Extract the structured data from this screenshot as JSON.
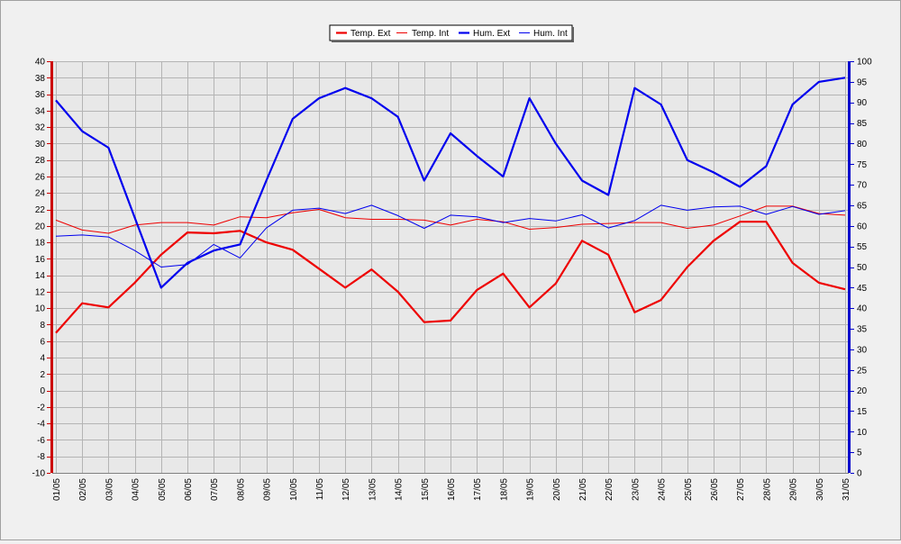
{
  "chart_data": {
    "type": "line",
    "title": "",
    "xlabel": "",
    "ylabel": "",
    "y2label": "",
    "categories": [
      "01/05",
      "02/05",
      "03/05",
      "04/05",
      "05/05",
      "06/05",
      "07/05",
      "08/05",
      "09/05",
      "10/05",
      "11/05",
      "12/05",
      "13/05",
      "14/05",
      "15/05",
      "16/05",
      "17/05",
      "18/05",
      "19/05",
      "20/05",
      "21/05",
      "22/05",
      "23/05",
      "24/05",
      "25/05",
      "26/05",
      "27/05",
      "28/05",
      "29/05",
      "30/05",
      "31/05"
    ],
    "ylim": [
      -10,
      40
    ],
    "y_ticks": [
      -10,
      -8,
      -6,
      -4,
      -2,
      0,
      2,
      4,
      6,
      8,
      10,
      12,
      14,
      16,
      18,
      20,
      22,
      24,
      26,
      28,
      30,
      32,
      34,
      36,
      38,
      40
    ],
    "y2lim": [
      0,
      100
    ],
    "y2_ticks": [
      0,
      5,
      10,
      15,
      20,
      25,
      30,
      35,
      40,
      45,
      50,
      55,
      60,
      65,
      70,
      75,
      80,
      85,
      90,
      95,
      100
    ],
    "grid": true,
    "legend_position": "top-center",
    "axis_colors": {
      "left": "#cc0000",
      "right": "#0000cc"
    },
    "series": [
      {
        "name": "Temp. Ext",
        "axis": "left",
        "color": "#ee0000",
        "width": 2.2,
        "values": [
          7.0,
          10.6,
          10.1,
          13.1,
          16.5,
          19.2,
          19.1,
          19.4,
          18.0,
          17.1,
          14.8,
          12.5,
          14.7,
          12.0,
          8.3,
          8.5,
          12.2,
          14.2,
          10.1,
          13.0,
          18.2,
          16.5,
          9.5,
          11.0,
          15.0,
          18.2,
          20.5,
          20.5,
          15.5,
          13.1,
          12.3
        ]
      },
      {
        "name": "Temp. Int",
        "axis": "left",
        "color": "#ee0000",
        "width": 1,
        "values": [
          20.7,
          19.5,
          19.1,
          20.1,
          20.4,
          20.4,
          20.1,
          21.1,
          21.0,
          21.6,
          22.0,
          21.0,
          20.8,
          20.8,
          20.7,
          20.1,
          20.8,
          20.5,
          19.6,
          19.8,
          20.2,
          20.3,
          20.4,
          20.4,
          19.7,
          20.1,
          21.2,
          22.4,
          22.4,
          21.5,
          21.3
        ]
      },
      {
        "name": "Hum. Ext",
        "axis": "right",
        "color": "#0000ee",
        "width": 2.2,
        "values": [
          90.5,
          83,
          79,
          62,
          45,
          51,
          54,
          55.5,
          71,
          86,
          91,
          93.5,
          91,
          86.5,
          71,
          82.5,
          77,
          72,
          91,
          80,
          71,
          67.5,
          93.5,
          89.5,
          76,
          73,
          69.5,
          74.5,
          89.5,
          95,
          96
        ]
      },
      {
        "name": "Hum. Int",
        "axis": "right",
        "color": "#0000ee",
        "width": 1,
        "values": [
          57.5,
          57.8,
          57.3,
          54,
          50,
          50.6,
          55.5,
          52.2,
          59.5,
          63.8,
          64.3,
          63,
          65,
          62.5,
          59.4,
          62.6,
          62.2,
          60.8,
          61.8,
          61.2,
          62.7,
          59.5,
          61.3,
          65,
          63.8,
          64.6,
          64.8,
          62.8,
          64.7,
          62.8,
          63.7
        ]
      }
    ]
  }
}
